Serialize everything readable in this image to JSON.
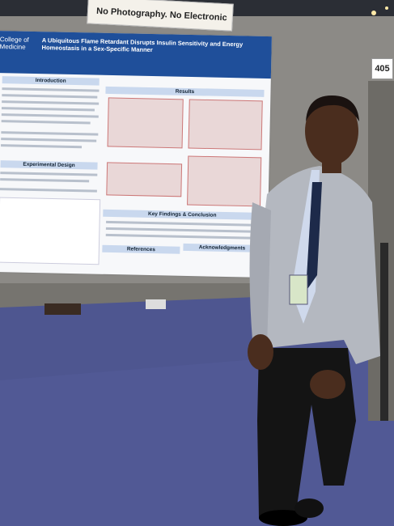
{
  "sign": "No Photography. No Electronic Capture.",
  "booth_number": "405",
  "poster": {
    "logo": "College of Medicine",
    "title": "A Ubiquitous Flame Retardant Disrupts Insulin Sensitivity and Energy Homeostasis in a Sex-Specific Manner",
    "sections": [
      "Introduction",
      "Results",
      "Experimental Design",
      "Key Findings & Conclusion",
      "References",
      "Acknowledgments"
    ]
  }
}
